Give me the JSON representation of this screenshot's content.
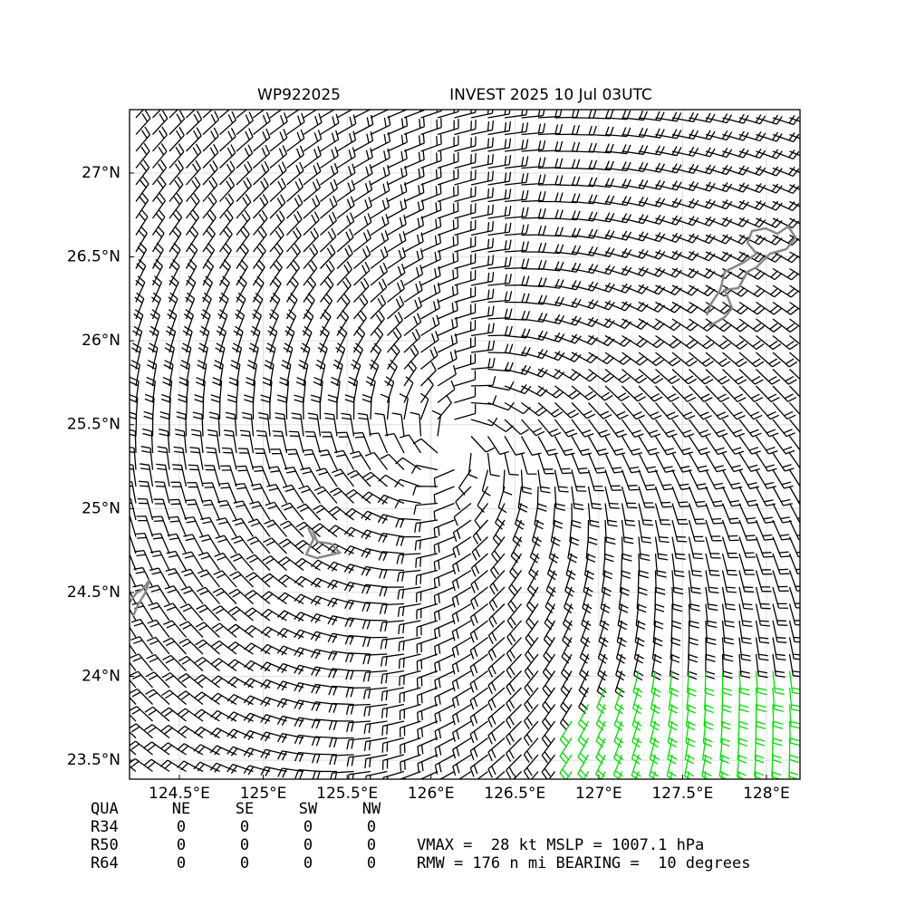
{
  "title": {
    "left": "WP922025",
    "right": "INVEST 2025 10 Jul 03UTC"
  },
  "map": {
    "xlim": [
      124.203,
      128.2
    ],
    "ylim": [
      23.387,
      27.378
    ],
    "grid": true,
    "xticks": [
      {
        "value": 124.5,
        "label": "124.5°E"
      },
      {
        "value": 125,
        "label": "125°E"
      },
      {
        "value": 125.5,
        "label": "125.5°E"
      },
      {
        "value": 126,
        "label": "126°E"
      },
      {
        "value": 126.5,
        "label": "126.5°E"
      },
      {
        "value": 127,
        "label": "127°E"
      },
      {
        "value": 127.5,
        "label": "127.5°E"
      },
      {
        "value": 128,
        "label": "128°E"
      }
    ],
    "yticks": [
      {
        "value": 23.5,
        "label": "23.5°N"
      },
      {
        "value": 24,
        "label": "24°N"
      },
      {
        "value": 24.5,
        "label": "24.5°N"
      },
      {
        "value": 25,
        "label": "25°N"
      },
      {
        "value": 25.5,
        "label": "25.5°N"
      },
      {
        "value": 26,
        "label": "26°N"
      },
      {
        "value": 26.5,
        "label": "26.5°N"
      },
      {
        "value": 27,
        "label": "27°N"
      }
    ]
  },
  "table": {
    "header": [
      "QUA",
      "NE",
      "SE",
      "SW",
      "NW"
    ],
    "rows": [
      [
        "R34",
        0,
        0,
        0,
        0
      ],
      [
        "R50",
        0,
        0,
        0,
        0
      ],
      [
        "R64",
        0,
        0,
        0,
        0
      ]
    ]
  },
  "stats": [
    "VMAX =  28 kt MSLP = 1007.1 hPa",
    "RMW = 176 n mi BEARING =  10 degrees"
  ]
}
